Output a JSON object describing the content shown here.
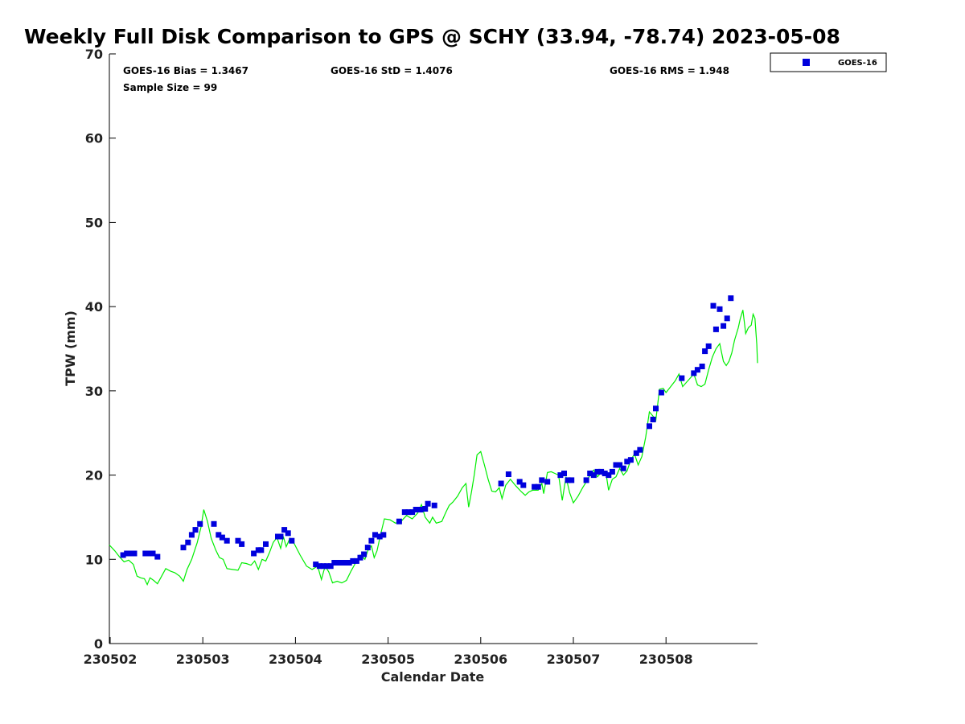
{
  "chart_data": {
    "type": "scatter",
    "title": "Weekly Full Disk Comparison to GPS @ SCHY (33.94, -78.74) 2023-05-08",
    "xlabel": "Calendar Date",
    "ylabel": "TPW (mm)",
    "xlim": [
      0,
      7
    ],
    "ylim": [
      0,
      70
    ],
    "yticks": [
      0,
      10,
      20,
      30,
      40,
      50,
      60,
      70
    ],
    "xticks": [
      {
        "value": 0,
        "label": "230502"
      },
      {
        "value": 1,
        "label": "230503"
      },
      {
        "value": 2,
        "label": "230504"
      },
      {
        "value": 3,
        "label": "230505"
      },
      {
        "value": 4,
        "label": "230506"
      },
      {
        "value": 5,
        "label": "230507"
      },
      {
        "value": 6,
        "label": "230508"
      }
    ],
    "stats": {
      "bias": "GOES-16 Bias = 1.3467",
      "std": "GOES-16 StD = 1.4076",
      "rms": "GOES-16 RMS = 1.948",
      "sample": "Sample Size = 99"
    },
    "legend": {
      "label": "GOES-16",
      "placement": "top-right outside"
    },
    "series": [
      {
        "name": "GOES-16",
        "style": "square markers",
        "color": "#0000dd",
        "points": [
          [
            0.14,
            10.5
          ],
          [
            0.18,
            10.7
          ],
          [
            0.22,
            10.7
          ],
          [
            0.26,
            10.7
          ],
          [
            0.38,
            10.7
          ],
          [
            0.42,
            10.7
          ],
          [
            0.46,
            10.7
          ],
          [
            0.51,
            10.3
          ],
          [
            0.79,
            11.4
          ],
          [
            0.84,
            12.0
          ],
          [
            0.88,
            12.9
          ],
          [
            0.92,
            13.5
          ],
          [
            0.97,
            14.2
          ],
          [
            1.12,
            14.2
          ],
          [
            1.17,
            12.9
          ],
          [
            1.21,
            12.6
          ],
          [
            1.26,
            12.2
          ],
          [
            1.38,
            12.2
          ],
          [
            1.42,
            11.8
          ],
          [
            1.55,
            10.7
          ],
          [
            1.6,
            11.1
          ],
          [
            1.63,
            11.1
          ],
          [
            1.68,
            11.8
          ],
          [
            1.81,
            12.7
          ],
          [
            1.84,
            12.7
          ],
          [
            1.88,
            13.5
          ],
          [
            1.92,
            13.1
          ],
          [
            1.96,
            12.2
          ],
          [
            2.22,
            9.4
          ],
          [
            2.26,
            9.2
          ],
          [
            2.3,
            9.2
          ],
          [
            2.34,
            9.2
          ],
          [
            2.38,
            9.2
          ],
          [
            2.42,
            9.6
          ],
          [
            2.46,
            9.6
          ],
          [
            2.5,
            9.6
          ],
          [
            2.54,
            9.6
          ],
          [
            2.58,
            9.6
          ],
          [
            2.62,
            9.8
          ],
          [
            2.66,
            9.8
          ],
          [
            2.7,
            10.2
          ],
          [
            2.74,
            10.6
          ],
          [
            2.78,
            11.4
          ],
          [
            2.82,
            12.2
          ],
          [
            2.86,
            12.9
          ],
          [
            2.91,
            12.7
          ],
          [
            2.95,
            12.9
          ],
          [
            3.12,
            14.5
          ],
          [
            3.18,
            15.6
          ],
          [
            3.22,
            15.6
          ],
          [
            3.26,
            15.6
          ],
          [
            3.3,
            15.9
          ],
          [
            3.35,
            15.9
          ],
          [
            3.4,
            16.0
          ],
          [
            3.43,
            16.6
          ],
          [
            3.5,
            16.4
          ],
          [
            4.22,
            19.0
          ],
          [
            4.3,
            20.1
          ],
          [
            4.42,
            19.2
          ],
          [
            4.46,
            18.8
          ],
          [
            4.58,
            18.6
          ],
          [
            4.62,
            18.6
          ],
          [
            4.66,
            19.4
          ],
          [
            4.72,
            19.2
          ],
          [
            4.86,
            20.0
          ],
          [
            4.9,
            20.2
          ],
          [
            4.94,
            19.4
          ],
          [
            4.98,
            19.4
          ],
          [
            5.14,
            19.4
          ],
          [
            5.18,
            20.2
          ],
          [
            5.22,
            20.0
          ],
          [
            5.26,
            20.4
          ],
          [
            5.3,
            20.4
          ],
          [
            5.34,
            20.2
          ],
          [
            5.38,
            20.0
          ],
          [
            5.42,
            20.4
          ],
          [
            5.46,
            21.2
          ],
          [
            5.5,
            21.2
          ],
          [
            5.54,
            20.8
          ],
          [
            5.58,
            21.6
          ],
          [
            5.62,
            21.8
          ],
          [
            5.68,
            22.6
          ],
          [
            5.72,
            23.0
          ],
          [
            5.82,
            25.8
          ],
          [
            5.86,
            26.6
          ],
          [
            5.89,
            27.9
          ],
          [
            5.95,
            29.8
          ],
          [
            6.17,
            31.5
          ],
          [
            6.3,
            32.1
          ],
          [
            6.34,
            32.5
          ],
          [
            6.39,
            32.9
          ],
          [
            6.42,
            34.7
          ],
          [
            6.46,
            35.3
          ],
          [
            6.51,
            40.1
          ],
          [
            6.54,
            37.3
          ],
          [
            6.58,
            39.7
          ],
          [
            6.62,
            37.7
          ],
          [
            6.66,
            38.6
          ],
          [
            6.7,
            41.0
          ]
        ]
      },
      {
        "name": "GPS",
        "style": "line",
        "color": "#00ee00",
        "points": [
          [
            -0.02,
            11.7
          ],
          [
            0.05,
            11.0
          ],
          [
            0.1,
            10.3
          ],
          [
            0.15,
            9.7
          ],
          [
            0.2,
            9.9
          ],
          [
            0.25,
            9.4
          ],
          [
            0.29,
            8.0
          ],
          [
            0.33,
            7.8
          ],
          [
            0.37,
            7.7
          ],
          [
            0.4,
            7.0
          ],
          [
            0.43,
            7.8
          ],
          [
            0.47,
            7.5
          ],
          [
            0.51,
            7.1
          ],
          [
            0.55,
            7.9
          ],
          [
            0.6,
            8.9
          ],
          [
            0.65,
            8.6
          ],
          [
            0.7,
            8.4
          ],
          [
            0.75,
            8.0
          ],
          [
            0.79,
            7.4
          ],
          [
            0.83,
            8.8
          ],
          [
            0.88,
            10.0
          ],
          [
            0.94,
            12.0
          ],
          [
            0.98,
            13.8
          ],
          [
            1.01,
            15.9
          ],
          [
            1.05,
            14.5
          ],
          [
            1.09,
            12.5
          ],
          [
            1.14,
            11.1
          ],
          [
            1.18,
            10.2
          ],
          [
            1.22,
            10.0
          ],
          [
            1.26,
            8.9
          ],
          [
            1.32,
            8.8
          ],
          [
            1.38,
            8.7
          ],
          [
            1.42,
            9.6
          ],
          [
            1.47,
            9.5
          ],
          [
            1.52,
            9.3
          ],
          [
            1.56,
            9.8
          ],
          [
            1.6,
            8.8
          ],
          [
            1.64,
            10.0
          ],
          [
            1.68,
            9.8
          ],
          [
            1.72,
            10.8
          ],
          [
            1.76,
            12.0
          ],
          [
            1.8,
            12.6
          ],
          [
            1.84,
            11.3
          ],
          [
            1.87,
            12.7
          ],
          [
            1.9,
            11.5
          ],
          [
            1.94,
            12.5
          ],
          [
            1.98,
            12.0
          ],
          [
            2.05,
            10.5
          ],
          [
            2.12,
            9.2
          ],
          [
            2.18,
            8.8
          ],
          [
            2.24,
            9.2
          ],
          [
            2.28,
            7.6
          ],
          [
            2.32,
            9.2
          ],
          [
            2.36,
            8.5
          ],
          [
            2.4,
            7.2
          ],
          [
            2.45,
            7.4
          ],
          [
            2.5,
            7.2
          ],
          [
            2.55,
            7.5
          ],
          [
            2.6,
            8.6
          ],
          [
            2.65,
            9.6
          ],
          [
            2.7,
            10.5
          ],
          [
            2.75,
            10.0
          ],
          [
            2.78,
            11.0
          ],
          [
            2.82,
            11.6
          ],
          [
            2.85,
            10.2
          ],
          [
            2.88,
            11.0
          ],
          [
            2.92,
            13.0
          ],
          [
            2.96,
            14.8
          ],
          [
            3.02,
            14.7
          ],
          [
            3.08,
            14.3
          ],
          [
            3.14,
            14.5
          ],
          [
            3.2,
            15.2
          ],
          [
            3.26,
            14.8
          ],
          [
            3.32,
            15.5
          ],
          [
            3.36,
            16.5
          ],
          [
            3.4,
            15.0
          ],
          [
            3.45,
            14.3
          ],
          [
            3.48,
            15.0
          ],
          [
            3.52,
            14.3
          ],
          [
            3.58,
            14.5
          ],
          [
            3.62,
            15.5
          ],
          [
            3.66,
            16.4
          ],
          [
            3.7,
            16.8
          ],
          [
            3.75,
            17.5
          ],
          [
            3.8,
            18.5
          ],
          [
            3.84,
            19.0
          ],
          [
            3.87,
            16.2
          ],
          [
            3.9,
            18.0
          ],
          [
            3.93,
            20.0
          ],
          [
            3.96,
            22.4
          ],
          [
            4.0,
            22.8
          ],
          [
            4.04,
            21.2
          ],
          [
            4.08,
            19.5
          ],
          [
            4.12,
            18.1
          ],
          [
            4.16,
            18.0
          ],
          [
            4.2,
            18.5
          ],
          [
            4.23,
            17.2
          ],
          [
            4.27,
            18.8
          ],
          [
            4.32,
            19.5
          ],
          [
            4.38,
            18.7
          ],
          [
            4.44,
            18.0
          ],
          [
            4.48,
            17.6
          ],
          [
            4.52,
            18.0
          ],
          [
            4.56,
            18.2
          ],
          [
            4.62,
            18.2
          ],
          [
            4.66,
            19.0
          ],
          [
            4.68,
            17.8
          ],
          [
            4.72,
            20.3
          ],
          [
            4.76,
            20.4
          ],
          [
            4.8,
            20.2
          ],
          [
            4.84,
            20.0
          ],
          [
            4.88,
            17.0
          ],
          [
            4.92,
            19.8
          ],
          [
            4.96,
            17.9
          ],
          [
            5.0,
            16.7
          ],
          [
            5.05,
            17.5
          ],
          [
            5.1,
            18.5
          ],
          [
            5.14,
            19.2
          ],
          [
            5.18,
            20.0
          ],
          [
            5.22,
            20.6
          ],
          [
            5.26,
            19.8
          ],
          [
            5.3,
            20.3
          ],
          [
            5.35,
            20.4
          ],
          [
            5.38,
            18.2
          ],
          [
            5.42,
            19.5
          ],
          [
            5.46,
            19.8
          ],
          [
            5.5,
            20.8
          ],
          [
            5.54,
            20.0
          ],
          [
            5.58,
            20.5
          ],
          [
            5.62,
            21.8
          ],
          [
            5.66,
            22.5
          ],
          [
            5.7,
            21.2
          ],
          [
            5.74,
            22.2
          ],
          [
            5.78,
            24.5
          ],
          [
            5.82,
            27.5
          ],
          [
            5.86,
            27.0
          ],
          [
            5.89,
            26.5
          ],
          [
            5.93,
            30.2
          ],
          [
            5.97,
            30.3
          ],
          [
            6.0,
            29.8
          ],
          [
            6.05,
            30.5
          ],
          [
            6.1,
            31.2
          ],
          [
            6.14,
            32.0
          ],
          [
            6.18,
            30.5
          ],
          [
            6.22,
            31.0
          ],
          [
            6.26,
            31.5
          ],
          [
            6.3,
            32.0
          ],
          [
            6.34,
            30.7
          ],
          [
            6.38,
            30.5
          ],
          [
            6.42,
            30.8
          ],
          [
            6.46,
            32.5
          ],
          [
            6.5,
            34.0
          ],
          [
            6.54,
            35.0
          ],
          [
            6.58,
            35.6
          ],
          [
            6.62,
            33.5
          ],
          [
            6.65,
            33.0
          ],
          [
            6.68,
            33.5
          ],
          [
            6.71,
            34.5
          ],
          [
            6.74,
            36.0
          ],
          [
            6.78,
            37.5
          ],
          [
            6.8,
            38.5
          ],
          [
            6.83,
            39.6
          ],
          [
            6.86,
            36.8
          ],
          [
            6.89,
            37.5
          ],
          [
            6.92,
            37.8
          ],
          [
            6.94,
            39.1
          ],
          [
            6.96,
            38.6
          ],
          [
            6.98,
            35.5
          ],
          [
            7.0,
            33.3
          ]
        ]
      }
    ]
  }
}
